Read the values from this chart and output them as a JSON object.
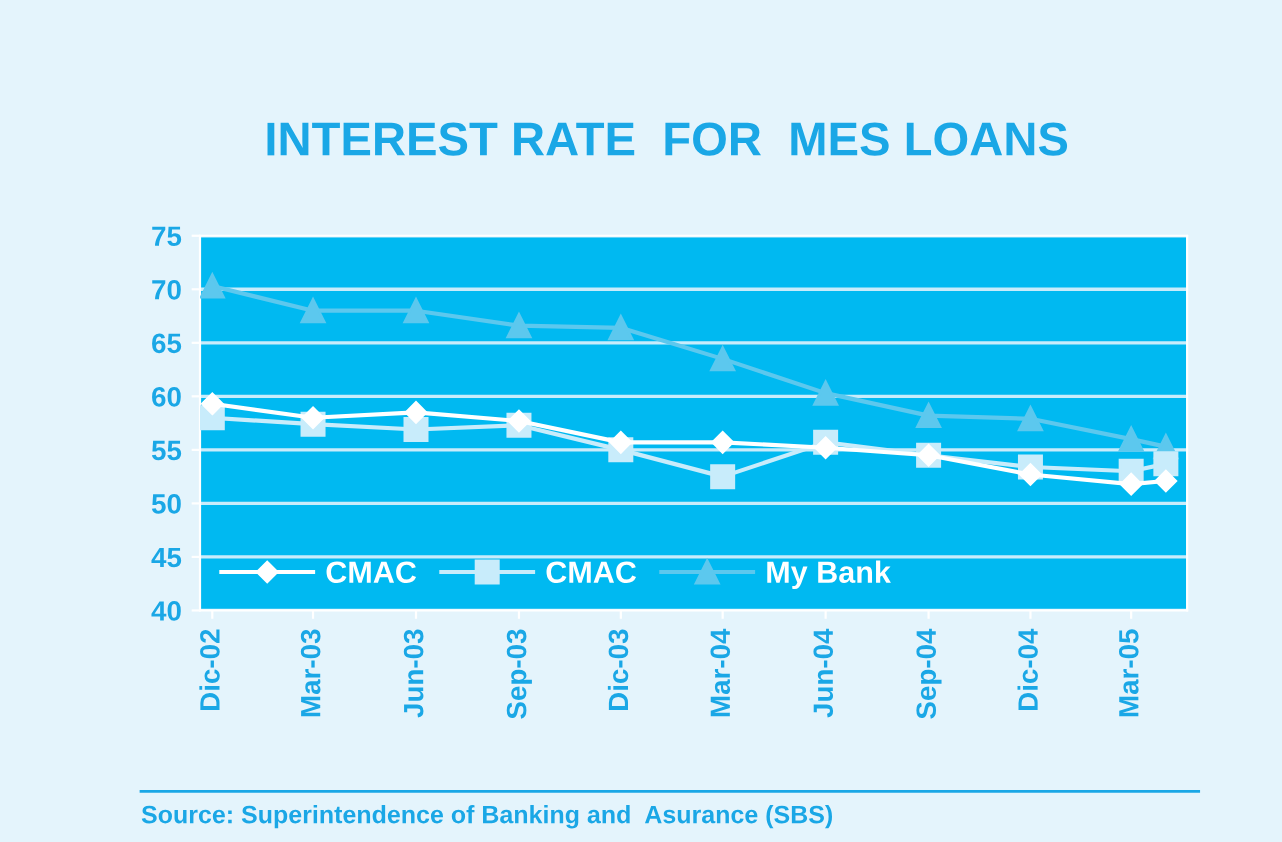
{
  "chart_data": {
    "type": "line",
    "title": "INTEREST RATE  FOR  MES LOANS",
    "x": [
      "2002-12",
      "2003-03",
      "2003-06",
      "2003-09",
      "2003-12",
      "2004-03",
      "2004-06",
      "2004-09",
      "2004-12",
      "2005-03",
      "2005-04"
    ],
    "series": [
      {
        "name": "CMAC",
        "color": "#ffffff",
        "marker": "diamond",
        "values": [
          59.3,
          58.0,
          58.5,
          57.7,
          55.7,
          55.7,
          55.2,
          54.5,
          52.7,
          51.8,
          52.1
        ]
      },
      {
        "name": "CMAC",
        "color": "#c8ecfb",
        "marker": "square",
        "values": [
          58.0,
          57.4,
          56.9,
          57.3,
          55.0,
          52.5,
          55.7,
          54.5,
          53.4,
          53.0,
          53.7
        ]
      },
      {
        "name": "My Bank",
        "color": "#5cc8ee",
        "marker": "triangle",
        "values": [
          70.3,
          68.0,
          68.0,
          66.6,
          66.4,
          63.5,
          60.3,
          58.2,
          57.9,
          56.0,
          55.3
        ]
      }
    ],
    "xlim": [
      "2002-11-20",
      "2005-04-20"
    ],
    "xticks": [
      {
        "value": "2002-12",
        "label": "Dic-02"
      },
      {
        "value": "2003-03",
        "label": "Mar-03"
      },
      {
        "value": "2003-06",
        "label": "Jun-03"
      },
      {
        "value": "2003-09",
        "label": "Sep-03"
      },
      {
        "value": "2003-12",
        "label": "Dic-03"
      },
      {
        "value": "2004-03",
        "label": "Mar-04"
      },
      {
        "value": "2004-06",
        "label": "Jun-04"
      },
      {
        "value": "2004-09",
        "label": "Sep-04"
      },
      {
        "value": "2004-12",
        "label": "Dic-04"
      },
      {
        "value": "2005-03",
        "label": "Mar-05"
      }
    ],
    "ylim": [
      40,
      75
    ],
    "yticks": [
      40,
      45,
      50,
      55,
      60,
      65,
      70,
      75
    ],
    "grid": "y",
    "legend": "bottom left",
    "annotations": [
      "Source: Superintendence of Banking and  Asurance (SBS)"
    ]
  }
}
